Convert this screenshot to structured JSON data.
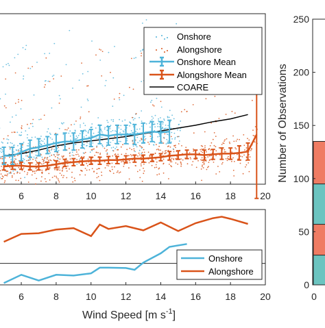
{
  "colors": {
    "onshore": "#4db3d9",
    "alongshore": "#d95319",
    "coare": "#000000",
    "bar_teal": "#6cc4c0",
    "bar_salmon": "#ef7c63"
  },
  "chart_data": [
    {
      "type": "scatter",
      "panel": "top",
      "xlim": [
        4.7,
        20
      ],
      "x_ticks": [
        6,
        8,
        10,
        12,
        14,
        16,
        18,
        20
      ],
      "x_tick_labels": [
        "6",
        "8",
        "10",
        "12",
        "14",
        "16",
        "18",
        "20"
      ],
      "legend": [
        "Onshore",
        "Alongshore",
        "Onshore Mean",
        "Alongshore Mean",
        "COARE"
      ],
      "legend_placement": "top-right",
      "series": [
        {
          "name": "Onshore Mean",
          "kind": "errorbar",
          "x": [
            5,
            5.5,
            6,
            6.5,
            7,
            7.5,
            8,
            8.5,
            9,
            9.5,
            10,
            10.5,
            11,
            11.5,
            12,
            12.5,
            13,
            13.5,
            14,
            14.5
          ],
          "y": [
            0.1,
            0.1,
            0.105,
            0.11,
            0.112,
            0.115,
            0.118,
            0.12,
            0.12,
            0.123,
            0.125,
            0.13,
            0.128,
            0.13,
            0.13,
            0.13,
            0.132,
            0.134,
            0.133,
            0.134
          ],
          "err": [
            0.012,
            0.012,
            0.012,
            0.012,
            0.012,
            0.012,
            0.012,
            0.012,
            0.012,
            0.012,
            0.012,
            0.013,
            0.013,
            0.013,
            0.013,
            0.014,
            0.014,
            0.014,
            0.015,
            0.016
          ]
        },
        {
          "name": "Alongshore Mean",
          "kind": "errorbar",
          "x": [
            5,
            5.5,
            6,
            6.5,
            7,
            7.5,
            8,
            8.5,
            9,
            9.5,
            10,
            10.5,
            11,
            11.5,
            12,
            12.5,
            13,
            13.5,
            14,
            14.5,
            15,
            15.5,
            16,
            16.5,
            17,
            17.5,
            18,
            18.5,
            19,
            19.5
          ],
          "y": [
            0.085,
            0.086,
            0.086,
            0.085,
            0.085,
            0.086,
            0.088,
            0.09,
            0.091,
            0.092,
            0.093,
            0.093,
            0.094,
            0.094,
            0.095,
            0.096,
            0.096,
            0.097,
            0.098,
            0.1,
            0.101,
            0.102,
            0.102,
            0.101,
            0.102,
            0.103,
            0.103,
            0.104,
            0.106,
            0.13
          ],
          "err": [
            0.005,
            0.005,
            0.005,
            0.005,
            0.005,
            0.005,
            0.005,
            0.005,
            0.005,
            0.005,
            0.005,
            0.005,
            0.005,
            0.005,
            0.005,
            0.005,
            0.005,
            0.005,
            0.005,
            0.006,
            0.006,
            0.006,
            0.006,
            0.007,
            0.007,
            0.008,
            0.008,
            0.01,
            0.012,
            0.09
          ]
        },
        {
          "name": "COARE",
          "kind": "line",
          "x": [
            5,
            6,
            7,
            8,
            9,
            10,
            11,
            12,
            13,
            14,
            15,
            16,
            17,
            18,
            19
          ],
          "y": [
            0.1,
            0.103,
            0.108,
            0.114,
            0.118,
            0.121,
            0.124,
            0.127,
            0.131,
            0.135,
            0.139,
            0.143,
            0.148,
            0.152,
            0.158
          ]
        }
      ]
    },
    {
      "type": "line",
      "panel": "bottom",
      "xlim": [
        4.7,
        20
      ],
      "xlabel": "Wind Speed [m s",
      "xlabel_sup": "-1",
      "xlabel_end": "]",
      "x_ticks": [
        6,
        8,
        10,
        12,
        14,
        16,
        18,
        20
      ],
      "x_tick_labels": [
        "6",
        "8",
        "10",
        "12",
        "14",
        "16",
        "18",
        "20"
      ],
      "legend_placement": "bottom-right",
      "series": [
        {
          "name": "Onshore",
          "x": [
            5,
            6,
            7,
            8,
            9,
            10,
            10.5,
            11,
            12,
            12.5,
            13,
            14,
            14.5,
            15.5
          ],
          "y": [
            0.5,
            2.8,
            1.2,
            2.8,
            2.6,
            3.2,
            4.8,
            4.8,
            4.7,
            4.2,
            6.2,
            8.8,
            10.6,
            11.4
          ]
        },
        {
          "name": "Alongshore",
          "x": [
            5,
            6,
            7,
            8,
            9,
            10,
            10.5,
            11,
            12,
            13,
            14,
            15,
            16,
            17,
            17.5,
            18,
            19
          ],
          "y": [
            12,
            14.2,
            14.4,
            15.4,
            15.8,
            13.6,
            16.8,
            15.6,
            16.4,
            15.2,
            17.4,
            15,
            17.2,
            18.6,
            19,
            18.4,
            17
          ]
        }
      ]
    },
    {
      "type": "bar",
      "panel": "right",
      "ylabel": "Number of Observations",
      "ylim": [
        0,
        250
      ],
      "y_ticks": [
        0,
        50,
        100,
        150,
        200,
        250
      ],
      "y_tick_labels": [
        "0",
        "50",
        "100",
        "150",
        "200",
        "250"
      ],
      "x_tick_labels": [
        "0"
      ],
      "stacks": [
        {
          "name": "teal-low",
          "from": 0,
          "to": 28
        },
        {
          "name": "salmon-mid",
          "from": 28,
          "to": 57
        },
        {
          "name": "teal-mid",
          "from": 57,
          "to": 95
        },
        {
          "name": "salmon-top",
          "from": 95,
          "to": 135
        }
      ]
    }
  ],
  "legend_top": {
    "onshore": "Onshore",
    "alongshore": "Alongshore",
    "onshore_mean": "Onshore Mean",
    "alongshore_mean": "Alongshore Mean",
    "coare": "COARE"
  },
  "legend_bottom": {
    "onshore": "Onshore",
    "alongshore": "Alongshore"
  }
}
